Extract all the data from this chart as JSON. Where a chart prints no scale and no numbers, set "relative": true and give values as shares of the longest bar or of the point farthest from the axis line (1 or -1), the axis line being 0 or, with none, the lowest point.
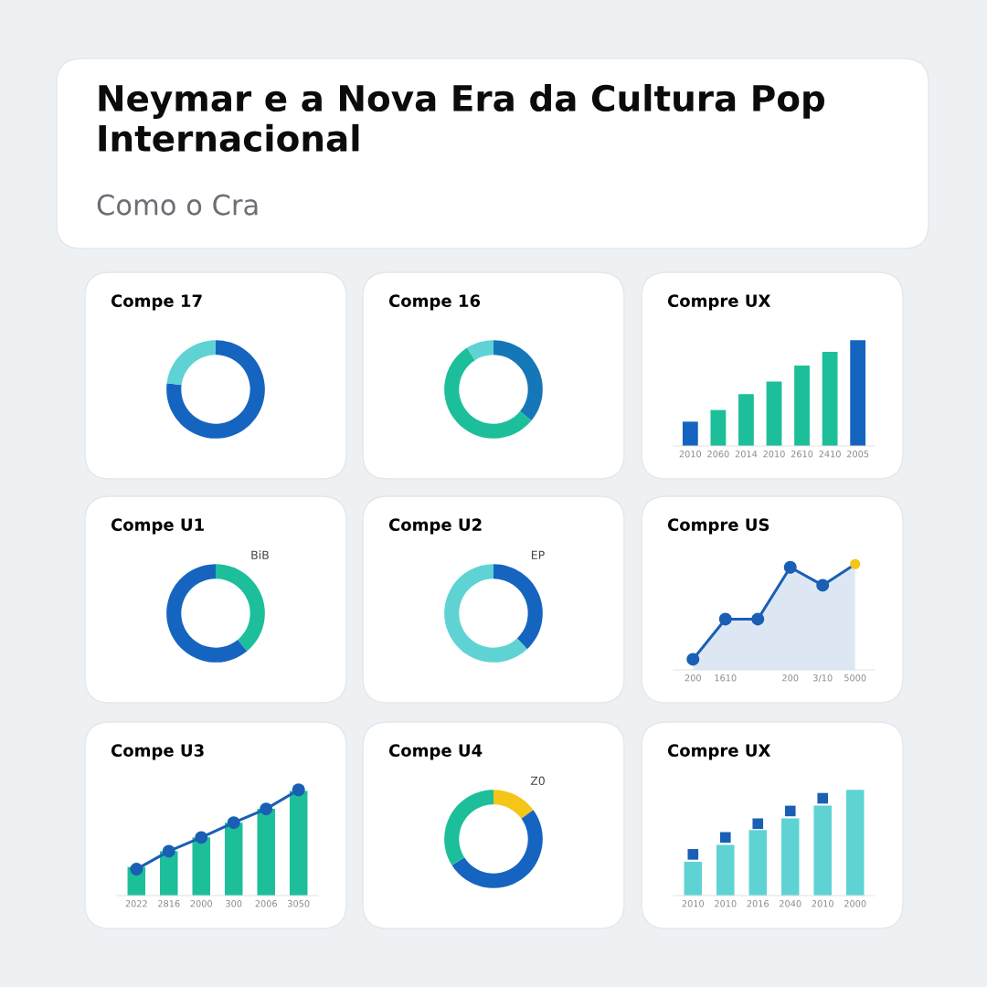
{
  "chart_data": [
    {
      "type": "other",
      "title": "Neymar e a Nova Era da Cultura Pop Internacional",
      "subtitle": "Como o Cra"
    },
    {
      "type": "donut",
      "title": "Compe 17",
      "categories": [
        null,
        null
      ],
      "values": [
        77,
        23
      ],
      "colors": [
        "#1565c0",
        "#5fd3d3"
      ]
    },
    {
      "type": "donut",
      "title": "Compe 16",
      "categories": [
        null,
        null,
        null
      ],
      "values": [
        36,
        55,
        9
      ],
      "colors": [
        "#1577b8",
        "#1dbf9a",
        "#5fd3d3"
      ]
    },
    {
      "type": "bar",
      "title": "Compre UX",
      "relative": true,
      "categories": [
        "2010",
        "2060",
        "2014",
        "2010",
        "2610",
        "2410",
        "2005"
      ],
      "values": [
        0.23,
        0.34,
        0.49,
        0.61,
        0.76,
        0.89,
        1
      ],
      "colors": [
        "#1565c0",
        "#1dbf9a",
        "#1dbf9a",
        "#1dbf9a",
        "#1dbf9a",
        "#1dbf9a",
        "#1565c0"
      ]
    },
    {
      "type": "donut",
      "title": "Compe U1",
      "categories": [
        null,
        null
      ],
      "values": [
        39,
        61
      ],
      "colors": [
        "#1dbf9a",
        "#1565c0"
      ],
      "annotations": [
        "BiB"
      ]
    },
    {
      "type": "donut",
      "title": "Compe U2",
      "categories": [
        null,
        null
      ],
      "values": [
        38,
        62
      ],
      "colors": [
        "#1565c0",
        "#5fd3d3"
      ],
      "annotations": [
        "EP"
      ]
    },
    {
      "type": "area",
      "title": "Compre US",
      "relative": true,
      "marker": "circle",
      "categories": [
        "200",
        "1610",
        null,
        "200",
        "3/10",
        "5000"
      ],
      "series": [
        {
          "color": "#1a5fb4",
          "values": [
            0.1,
            0.48,
            0.48,
            0.97,
            0.8,
            1
          ],
          "colors": [
            "#1a5fb4",
            "#1a5fb4",
            "#1a5fb4",
            "#1a5fb4",
            "#1a5fb4",
            "#f5c518"
          ]
        }
      ]
    },
    {
      "type": "bar",
      "title": "Compe U3",
      "relative": true,
      "marker": "circle",
      "categories": [
        "2022",
        "2816",
        "2000",
        "300",
        "2006",
        "3050"
      ],
      "series": [
        {
          "color": "#1dbf9a",
          "values": [
            0.27,
            0.42,
            0.55,
            0.69,
            0.82,
            0.99
          ]
        },
        {
          "type": "line",
          "color": "#1a5fb4",
          "values": [
            0.25,
            0.42,
            0.55,
            0.69,
            0.82,
            1
          ]
        }
      ]
    },
    {
      "type": "donut",
      "title": "Compe U4",
      "categories": [
        null,
        null,
        null
      ],
      "values": [
        15,
        51,
        34
      ],
      "colors": [
        "#f5c518",
        "#1565c0",
        "#1dbf9a"
      ],
      "annotations": [
        "Z0"
      ]
    },
    {
      "type": "bar",
      "title": "Compre UX",
      "relative": true,
      "categories": [
        "2010",
        "2010",
        "2016",
        "2040",
        "2010",
        "2000"
      ],
      "series": [
        {
          "color": "#5fd3d3",
          "values": [
            0.32,
            0.48,
            0.62,
            0.73,
            0.85,
            1
          ]
        },
        {
          "type": "scatter",
          "marker": "square",
          "color": "#1a5fb4",
          "values": [
            0.39,
            0.55,
            0.68,
            0.8,
            0.92,
            null
          ]
        }
      ]
    }
  ]
}
